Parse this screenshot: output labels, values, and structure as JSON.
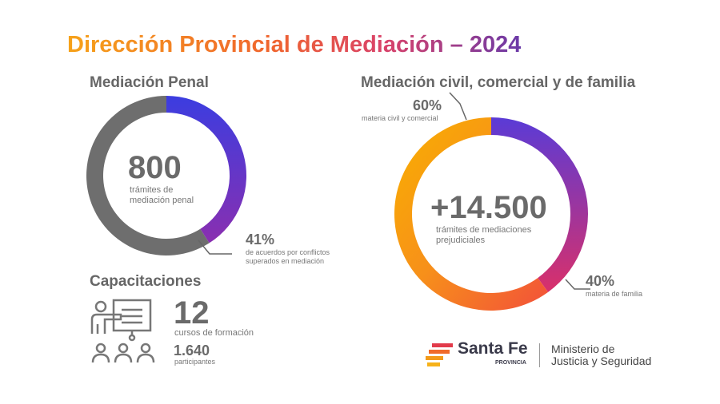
{
  "title": "Dirección Provincial de Mediación – 2024",
  "penal": {
    "heading": "Mediación Penal",
    "total": "800",
    "total_label_1": "trámites de",
    "total_label_2": "mediación penal",
    "pct": "41%",
    "pct_label_1": "de acuerdos por conflictos",
    "pct_label_2": "superados en mediación"
  },
  "civil": {
    "heading": "Mediación civil, comercial y de familia",
    "total": "+14.500",
    "total_label_1": "trámites de mediaciones",
    "total_label_2": "prejudiciales",
    "pct_a": "60%",
    "pct_a_label": "materia civil y comercial",
    "pct_b": "40%",
    "pct_b_label": "materia de familia"
  },
  "capacitaciones": {
    "heading": "Capacitaciones",
    "cursos": "12",
    "cursos_label": "cursos de formación",
    "participantes": "1.640",
    "participantes_label": "participantes"
  },
  "footer": {
    "logo_text": "Santa Fe",
    "logo_sub": "PROVINCIA",
    "ministry_1": "Ministerio de",
    "ministry_2": "Justicia y Seguridad"
  },
  "chart_data": [
    {
      "type": "pie",
      "variant": "donut",
      "slices": [
        {
          "label": "41%",
          "value": 41,
          "colors": [
            "#3b3de0",
            "#8a2fb0"
          ]
        },
        {
          "label": "resto",
          "value": 59,
          "colors": [
            "#6e6e6e",
            "#6e6e6e"
          ]
        }
      ]
    },
    {
      "type": "pie",
      "variant": "donut",
      "slices": [
        {
          "label": "materia de familia",
          "value": 40,
          "colors": [
            "#5a3bd6",
            "#d9306a"
          ]
        },
        {
          "label": "materia civil y comercial",
          "value": 60,
          "colors": [
            "#f2503a",
            "#f9b000"
          ]
        }
      ]
    }
  ]
}
